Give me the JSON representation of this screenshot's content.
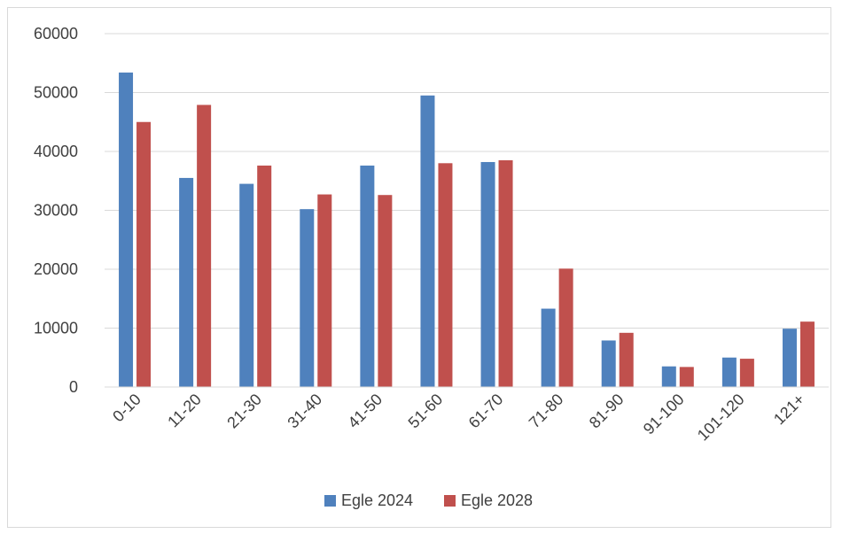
{
  "chart_data": {
    "type": "bar",
    "title": "",
    "xlabel": "",
    "ylabel": "",
    "categories": [
      "0-10",
      "11-20",
      "21-30",
      "31-40",
      "41-50",
      "51-60",
      "61-70",
      "71-80",
      "81-90",
      "91-100",
      "101-120",
      "121+"
    ],
    "series": [
      {
        "name": "Egle 2024",
        "color": "#4f81bd",
        "values": [
          53400,
          35500,
          34500,
          30200,
          37600,
          49500,
          38200,
          13300,
          7900,
          3500,
          5000,
          9900
        ]
      },
      {
        "name": "Egle 2028",
        "color": "#c0504d",
        "values": [
          45000,
          47900,
          37600,
          32700,
          32600,
          38000,
          38500,
          20100,
          9200,
          3400,
          4800,
          11100
        ]
      }
    ],
    "ylim": [
      0,
      60000
    ],
    "yticks": [
      0,
      10000,
      20000,
      30000,
      40000,
      50000,
      60000
    ],
    "grid": true,
    "legend_position": "bottom"
  }
}
